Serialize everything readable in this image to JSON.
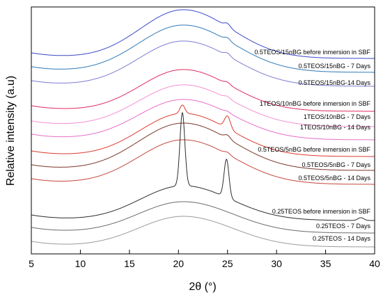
{
  "chart_data": {
    "type": "line",
    "title": "",
    "xlabel": "2θ (°)",
    "ylabel": "Relative intensity (a.u)",
    "xlim": [
      5,
      40
    ],
    "x_ticks": [
      "5",
      "10",
      "15",
      "20",
      "25",
      "30",
      "35",
      "40"
    ],
    "grid": false,
    "legend": "inline labels at right",
    "series": [
      {
        "name": "0.5TEOS/15nBG before inmersion in SBF",
        "color": "#3a46c9",
        "baseline": 0.2,
        "peak": 0.7,
        "width": 2.2,
        "sharp": [],
        "small": [
          [
            25,
            0.05
          ]
        ]
      },
      {
        "name": "0.5TEOS/15nBG - 7 Days",
        "color": "#2e78b5",
        "baseline": 0.2,
        "peak": 0.68,
        "width": 2.3,
        "sharp": [],
        "small": [
          [
            25,
            0.04
          ]
        ]
      },
      {
        "name": "0.5TEOS/15nBG-14 Days",
        "color": "#7b7ad1",
        "baseline": 0.2,
        "peak": 0.65,
        "width": 2.3,
        "sharp": [],
        "small": [
          [
            25,
            0.04
          ]
        ]
      },
      {
        "name": "1TEOS/10nBG before inmersion in SBF",
        "color": "#e0295e",
        "baseline": 0.2,
        "peak": 0.6,
        "width": 2.2,
        "sharp": [],
        "small": [
          [
            25,
            0.03
          ]
        ]
      },
      {
        "name": "1TEOS/10nBG - 7 Days",
        "color": "#f28fd0",
        "baseline": 0.2,
        "peak": 0.6,
        "width": 2.3,
        "sharp": [],
        "small": [
          [
            25,
            0.03
          ]
        ]
      },
      {
        "name": "1TEOS/10nBG - 14 Days",
        "color": "#e66cc6",
        "baseline": 0.2,
        "peak": 0.58,
        "width": 2.3,
        "sharp": [],
        "small": [
          [
            25,
            0.02
          ]
        ]
      },
      {
        "name": "0.5TEOS/5nBG before inmersion in SBF",
        "color": "#d93a2e",
        "baseline": 0.2,
        "peak": 0.62,
        "width": 2.2,
        "sharp": [
          [
            20.4,
            0.12
          ]
        ],
        "small": [
          [
            25,
            0.18
          ]
        ]
      },
      {
        "name": "0.5TEOS/5nBG - 7 Days",
        "color": "#7a3528",
        "baseline": 0.2,
        "peak": 0.68,
        "width": 2.3,
        "sharp": [],
        "small": [
          [
            25,
            0.05
          ]
        ]
      },
      {
        "name": "0.5TEOS/5nBG - 14 Days",
        "color": "#c4463a",
        "baseline": 0.2,
        "peak": 0.64,
        "width": 2.3,
        "sharp": [],
        "small": [
          [
            25,
            0.03
          ]
        ]
      },
      {
        "name": "0.25TEOS before inmersion in SBF",
        "color": "#2b2b2b",
        "baseline": 0.2,
        "peak": 0.5,
        "width": 2.2,
        "sharp": [
          [
            20.4,
            1.05
          ],
          [
            24.9,
            0.55
          ]
        ],
        "small": [
          [
            38.6,
            0.04
          ]
        ]
      },
      {
        "name": "0.25TEOS - 7 Days",
        "color": "#6a6a6a",
        "baseline": 0.2,
        "peak": 0.45,
        "width": 2.3,
        "sharp": [],
        "small": []
      },
      {
        "name": "0.25TEOS - 14 Days",
        "color": "#9a9a9a",
        "baseline": 0.2,
        "peak": 0.44,
        "width": 2.3,
        "sharp": [],
        "small": []
      }
    ]
  }
}
